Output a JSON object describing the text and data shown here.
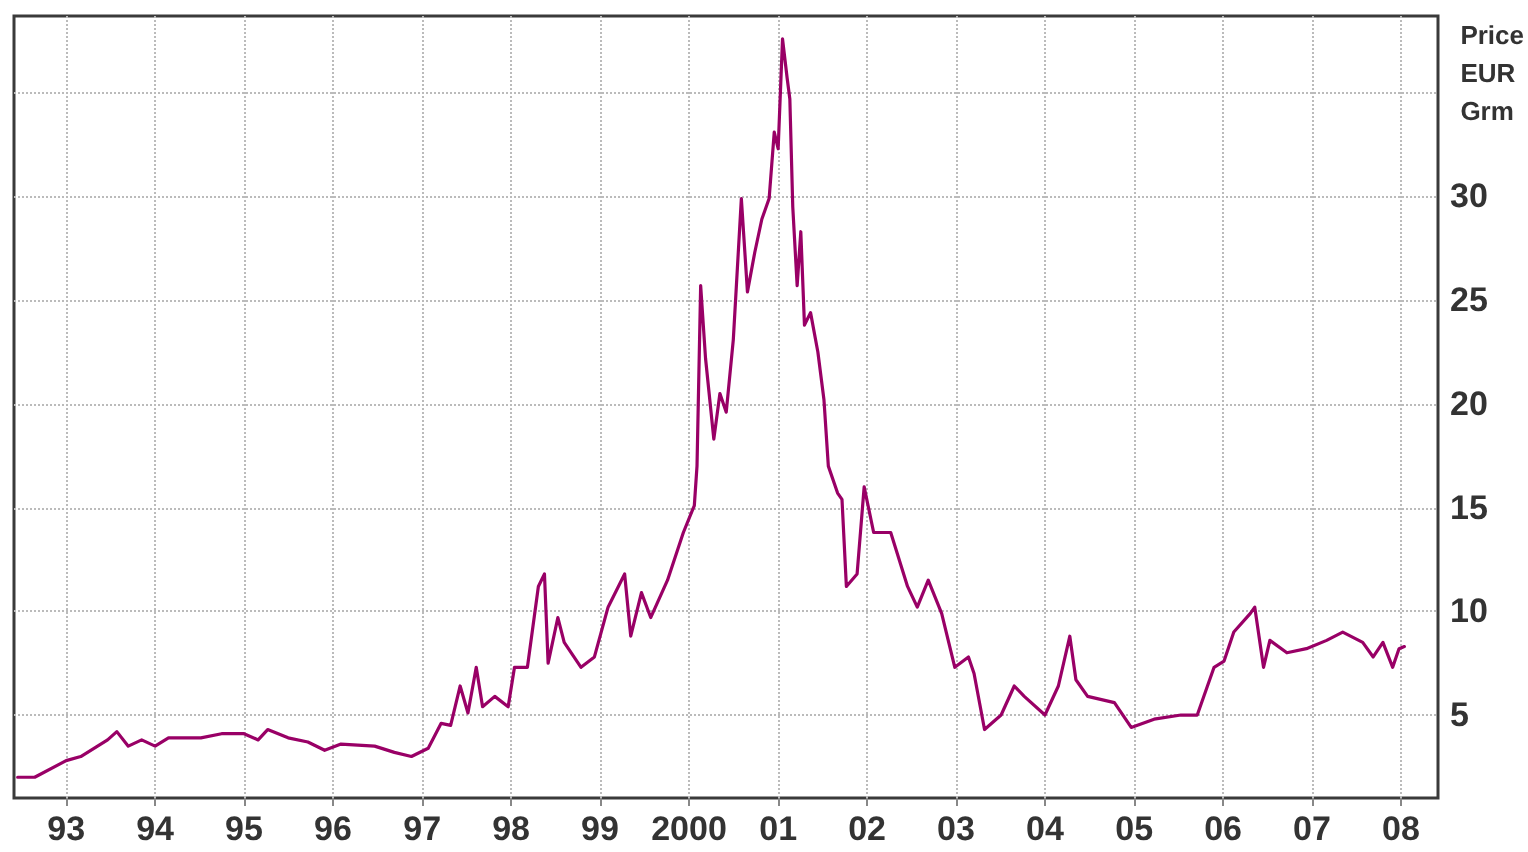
{
  "chart_data": {
    "type": "line",
    "ylabel": "Price EUR Grm",
    "x": [
      "1992-06-16",
      "1992-08-25",
      "1993-01-01",
      "1993-03-02",
      "1993-06-20",
      "1993-07-28",
      "1993-09-13",
      "1993-11-07",
      "1994-01-01",
      "1994-02-25",
      "1994-07-08",
      "1994-10-01",
      "1995-01-01",
      "1995-02-28",
      "1995-04-08",
      "1995-07-01",
      "1995-09-20",
      "1995-11-28",
      "1996-02-03",
      "1996-06-20",
      "1996-09-09",
      "1996-11-18",
      "1997-01-26",
      "1997-03-20",
      "1997-04-28",
      "1997-06-06",
      "1997-07-08",
      "1997-08-11",
      "1997-09-06",
      "1997-10-26",
      "1997-12-20",
      "1998-01-15",
      "1998-03-09",
      "1998-04-23",
      "1998-05-18",
      "1998-06-02",
      "1998-07-12",
      "1998-08-07",
      "1998-10-15",
      "1998-12-09",
      "1999-02-03",
      "1999-04-12",
      "1999-05-07",
      "1999-06-20",
      "1999-07-28",
      "1999-10-05",
      "1999-12-09",
      "2000-01-23",
      "2000-02-03",
      "2000-02-18",
      "2000-03-09",
      "2000-04-12",
      "2000-05-07",
      "2000-06-02",
      "2000-07-01",
      "2000-08-03",
      "2000-08-28",
      "2000-09-27",
      "2000-10-26",
      "2000-11-25",
      "2000-12-16",
      "2001-01-01",
      "2001-01-19",
      "2001-02-07",
      "2001-02-18",
      "2001-03-02",
      "2001-03-20",
      "2001-04-04",
      "2001-04-19",
      "2001-05-14",
      "2001-06-13",
      "2001-07-08",
      "2001-07-26",
      "2001-09-02",
      "2001-09-20",
      "2001-10-08",
      "2001-11-21",
      "2001-12-20",
      "2002-01-28",
      "2002-04-08",
      "2002-06-16",
      "2002-07-26",
      "2002-09-09",
      "2002-11-03",
      "2002-12-27",
      "2003-02-21",
      "2003-03-16",
      "2003-04-28",
      "2003-07-05",
      "2003-08-28",
      "2003-10-08",
      "2004-01-01",
      "2004-02-25",
      "2004-04-12",
      "2004-05-07",
      "2004-06-24",
      "2004-10-12",
      "2004-12-20",
      "2005-03-24",
      "2005-07-12",
      "2005-09-17",
      "2005-11-25",
      "2006-01-05",
      "2006-02-14",
      "2006-04-23",
      "2006-05-11",
      "2006-06-16",
      "2006-07-12",
      "2006-09-20",
      "2006-12-09",
      "2007-03-02",
      "2007-05-07",
      "2007-07-28",
      "2007-09-09",
      "2007-10-19",
      "2007-11-28",
      "2007-12-24",
      "2008-01-15"
    ],
    "series": [
      {
        "color": "#990066",
        "values": [
          2.0,
          2.0,
          2.8,
          3.0,
          3.8,
          4.2,
          3.5,
          3.8,
          3.5,
          3.9,
          3.9,
          4.1,
          4.1,
          3.8,
          4.3,
          3.9,
          3.7,
          3.3,
          3.6,
          3.5,
          3.2,
          3.0,
          3.4,
          4.6,
          4.5,
          6.4,
          5.1,
          7.3,
          5.4,
          5.9,
          5.4,
          7.3,
          7.3,
          11.2,
          11.8,
          7.5,
          9.7,
          8.5,
          7.3,
          7.8,
          10.2,
          11.8,
          8.8,
          10.9,
          9.7,
          11.5,
          13.8,
          15.1,
          17.0,
          25.7,
          22.2,
          18.3,
          20.5,
          19.6,
          23.1,
          29.9,
          25.4,
          27.3,
          28.9,
          29.9,
          33.1,
          32.3,
          37.6,
          35.7,
          34.7,
          29.5,
          25.7,
          28.3,
          23.8,
          24.4,
          22.5,
          20.2,
          17.0,
          15.7,
          15.4,
          11.2,
          11.8,
          16.0,
          13.8,
          13.8,
          11.2,
          10.2,
          11.5,
          9.9,
          7.3,
          7.8,
          7.0,
          4.3,
          5.0,
          6.4,
          5.9,
          5.0,
          6.4,
          8.8,
          6.7,
          5.9,
          5.6,
          4.4,
          4.8,
          5.0,
          5.0,
          7.3,
          7.6,
          9.0,
          9.9,
          10.2,
          7.3,
          8.6,
          8.0,
          8.2,
          8.6,
          9.0,
          8.5,
          7.8,
          8.5,
          7.3,
          8.2,
          8.3
        ]
      }
    ],
    "xlim": [
      "1992-06-01",
      "2008-06-01"
    ],
    "xticks": [
      {
        "value": "1993",
        "label": "93"
      },
      {
        "value": "1994",
        "label": "94"
      },
      {
        "value": "1995",
        "label": "95"
      },
      {
        "value": "1996",
        "label": "96"
      },
      {
        "value": "1997",
        "label": "97"
      },
      {
        "value": "1998",
        "label": "98"
      },
      {
        "value": "1999",
        "label": "99"
      },
      {
        "value": "2000",
        "label": "2000"
      },
      {
        "value": "2001",
        "label": "01"
      },
      {
        "value": "2002",
        "label": "02"
      },
      {
        "value": "2003",
        "label": "03"
      },
      {
        "value": "2004",
        "label": "04"
      },
      {
        "value": "2005",
        "label": "05"
      },
      {
        "value": "2006",
        "label": "06"
      },
      {
        "value": "2007",
        "label": "07"
      },
      {
        "value": "2008",
        "label": "08"
      }
    ],
    "ylim": [
      1,
      38.7
    ],
    "yticks": [
      5,
      10,
      15,
      20,
      25,
      30,
      {
        "value": 35,
        "label": null
      }
    ],
    "grid": true,
    "marker": "none",
    "line_style": "solid"
  }
}
